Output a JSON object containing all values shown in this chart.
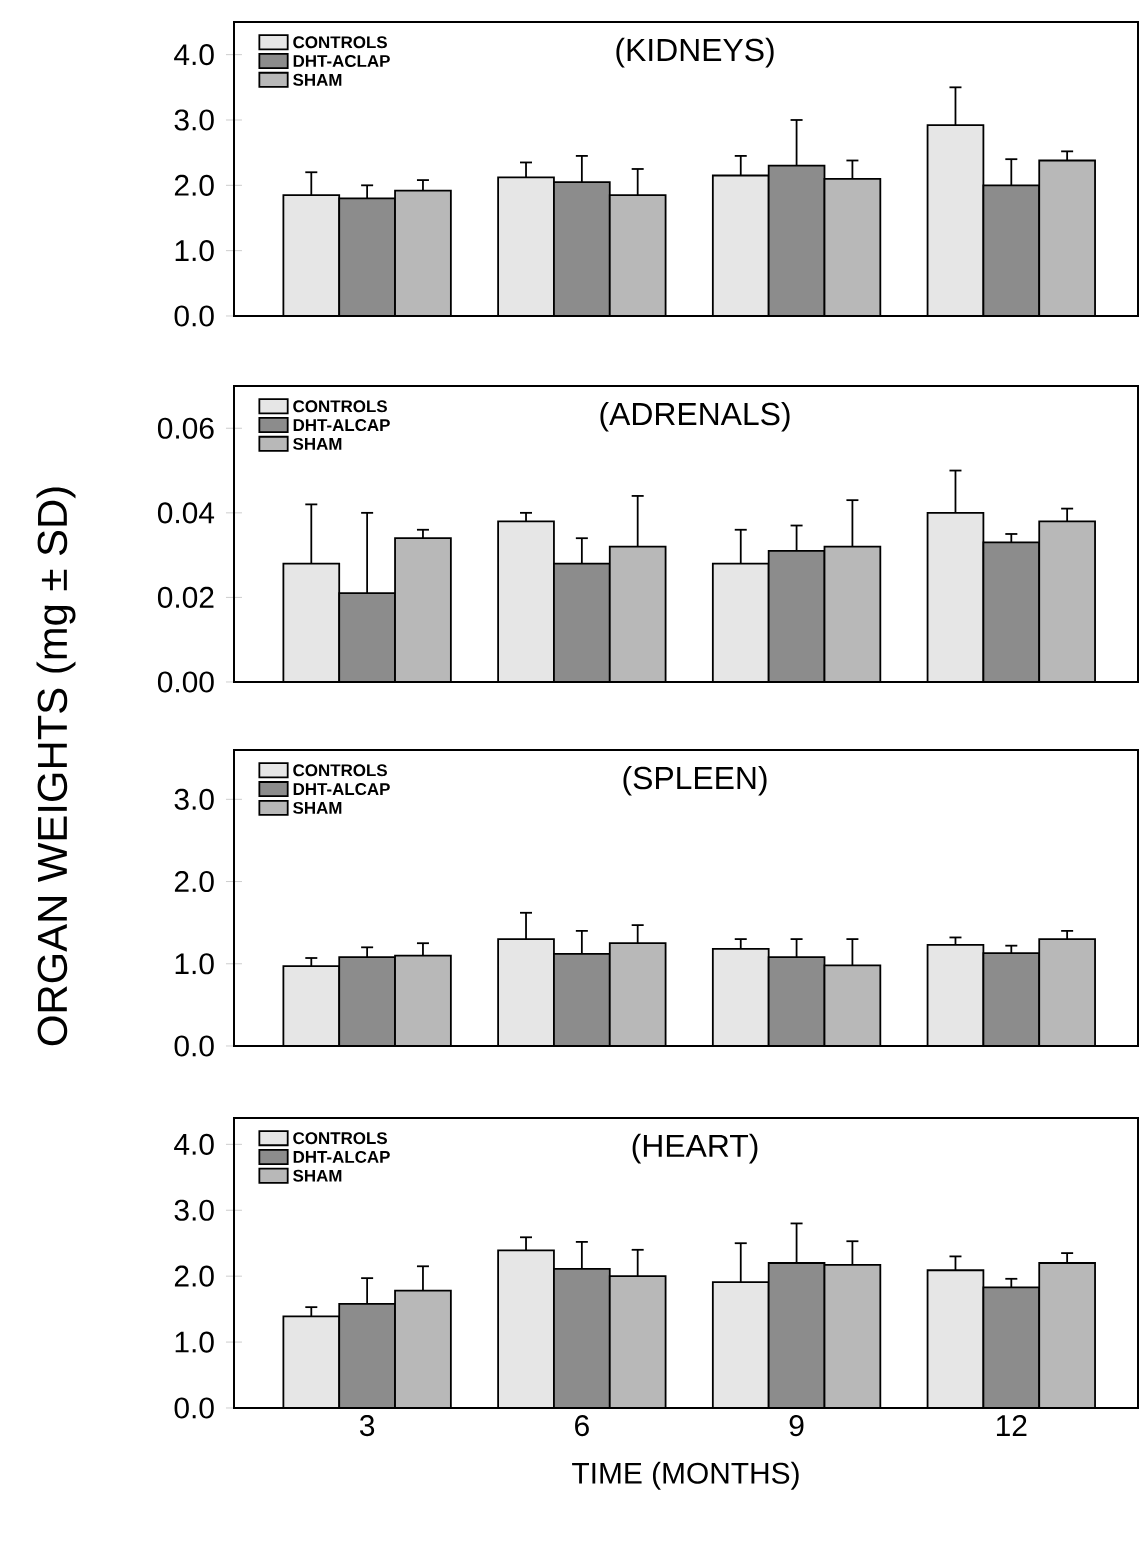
{
  "chart_data": [
    {
      "type": "bar",
      "title": "(KIDNEYS)",
      "ylabel": "ORGAN WEIGHTS (mg ± SD)",
      "categories": [
        "3",
        "6",
        "9",
        "12"
      ],
      "ylim": [
        0,
        4.5
      ],
      "yticks": [
        {
          "value": 0,
          "label": "0.0"
        },
        {
          "value": 1,
          "label": "1.0"
        },
        {
          "value": 2,
          "label": "2.0"
        },
        {
          "value": 3,
          "label": "3.0"
        },
        {
          "value": 4,
          "label": "4.0"
        }
      ],
      "legend": "top left",
      "tick_labels": "y",
      "series": [
        {
          "name": "CONTROLS",
          "color": "#e6e6e6",
          "values": [
            1.85,
            2.12,
            2.15,
            2.92
          ],
          "errors": [
            [
              1.85,
              2.2
            ],
            [
              2.12,
              2.35
            ],
            [
              2.15,
              2.45
            ],
            [
              2.92,
              3.5
            ]
          ]
        },
        {
          "name": "DHT-ACLAP",
          "color": "#8c8c8c",
          "values": [
            1.8,
            2.05,
            2.3,
            2.0
          ],
          "errors": [
            [
              1.8,
              2.0
            ],
            [
              2.05,
              2.45
            ],
            [
              2.3,
              3.0
            ],
            [
              2.0,
              2.4
            ]
          ]
        },
        {
          "name": "SHAM",
          "color": "#b8b8b8",
          "values": [
            1.92,
            1.85,
            2.1,
            2.38
          ],
          "errors": [
            [
              1.92,
              2.08
            ],
            [
              1.85,
              2.25
            ],
            [
              2.1,
              2.38
            ],
            [
              2.38,
              2.52
            ]
          ]
        }
      ]
    },
    {
      "type": "bar",
      "title": "(ADRENALS)",
      "categories": [
        "3",
        "6",
        "9",
        "12"
      ],
      "ylim": [
        0,
        0.07
      ],
      "yticks": [
        {
          "value": 0,
          "label": "0.00"
        },
        0.02,
        0.04,
        0.06
      ],
      "legend": "top left",
      "tick_labels": "y",
      "series": [
        {
          "name": "CONTROLS",
          "color": "#e6e6e6",
          "values": [
            0.028,
            0.038,
            0.028,
            0.04
          ],
          "errors": [
            [
              0.028,
              0.042
            ],
            [
              0.038,
              0.04
            ],
            [
              0.028,
              0.036
            ],
            [
              0.04,
              0.05
            ]
          ]
        },
        {
          "name": "DHT-ALCAP",
          "color": "#8c8c8c",
          "values": [
            0.021,
            0.028,
            0.031,
            0.033
          ],
          "errors": [
            [
              0.021,
              0.04
            ],
            [
              0.028,
              0.034
            ],
            [
              0.031,
              0.037
            ],
            [
              0.033,
              0.035
            ]
          ]
        },
        {
          "name": "SHAM",
          "color": "#b8b8b8",
          "values": [
            0.034,
            0.032,
            0.032,
            0.038
          ],
          "errors": [
            [
              0.034,
              0.036
            ],
            [
              0.032,
              0.044
            ],
            [
              0.032,
              0.043
            ],
            [
              0.038,
              0.041
            ]
          ]
        }
      ]
    },
    {
      "type": "bar",
      "title": "(SPLEEN)",
      "categories": [
        "3",
        "6",
        "9",
        "12"
      ],
      "ylim": [
        0,
        3.6
      ],
      "yticks": [
        {
          "value": 0,
          "label": "0.0"
        },
        {
          "value": 1,
          "label": "1.0"
        },
        {
          "value": 2,
          "label": "2.0"
        },
        {
          "value": 3,
          "label": "3.0"
        }
      ],
      "legend": "top left",
      "tick_labels": "y",
      "series": [
        {
          "name": "CONTROLS",
          "color": "#e6e6e6",
          "values": [
            0.97,
            1.3,
            1.18,
            1.23
          ],
          "errors": [
            [
              0.97,
              1.07
            ],
            [
              1.3,
              1.62
            ],
            [
              1.18,
              1.3
            ],
            [
              1.23,
              1.32
            ]
          ]
        },
        {
          "name": "DHT-ALCAP",
          "color": "#8c8c8c",
          "values": [
            1.08,
            1.12,
            1.08,
            1.13
          ],
          "errors": [
            [
              1.08,
              1.2
            ],
            [
              1.12,
              1.4
            ],
            [
              1.08,
              1.3
            ],
            [
              1.13,
              1.22
            ]
          ]
        },
        {
          "name": "SHAM",
          "color": "#b8b8b8",
          "values": [
            1.1,
            1.25,
            0.98,
            1.3
          ],
          "errors": [
            [
              1.1,
              1.25
            ],
            [
              1.25,
              1.47
            ],
            [
              0.98,
              1.3
            ],
            [
              1.3,
              1.4
            ]
          ]
        }
      ]
    },
    {
      "type": "bar",
      "title": "(HEART)",
      "xlabel": "TIME (MONTHS)",
      "categories": [
        "3",
        "6",
        "9",
        "12"
      ],
      "ylim": [
        0,
        4.4
      ],
      "yticks": [
        {
          "value": 0,
          "label": "0.0"
        },
        {
          "value": 1,
          "label": "1.0"
        },
        {
          "value": 2,
          "label": "2.0"
        },
        {
          "value": 3,
          "label": "3.0"
        },
        {
          "value": 4,
          "label": "4.0"
        }
      ],
      "legend": "top left",
      "series": [
        {
          "name": "CONTROLS",
          "color": "#e6e6e6",
          "values": [
            1.39,
            2.39,
            1.91,
            2.09
          ],
          "errors": [
            [
              1.39,
              1.53
            ],
            [
              2.39,
              2.59
            ],
            [
              1.91,
              2.5
            ],
            [
              2.09,
              2.3
            ]
          ]
        },
        {
          "name": "DHT-ALCAP",
          "color": "#8c8c8c",
          "values": [
            1.58,
            2.11,
            2.2,
            1.83
          ],
          "errors": [
            [
              1.58,
              1.97
            ],
            [
              2.11,
              2.52
            ],
            [
              2.2,
              2.8
            ],
            [
              1.83,
              1.96
            ]
          ]
        },
        {
          "name": "SHAM",
          "color": "#b8b8b8",
          "values": [
            1.78,
            2.0,
            2.17,
            2.2
          ],
          "errors": [
            [
              1.78,
              2.15
            ],
            [
              2.0,
              2.4
            ],
            [
              2.17,
              2.53
            ],
            [
              2.2,
              2.35
            ]
          ]
        }
      ]
    }
  ]
}
